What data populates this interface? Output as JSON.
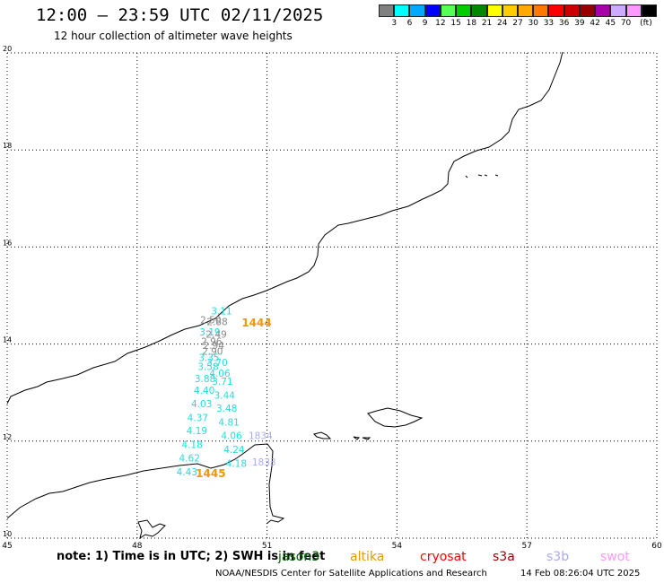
{
  "header": {
    "title": "12:00 – 23:59 UTC 02/11/2025",
    "subtitle": "12 hour collection of altimeter wave heights"
  },
  "legend": {
    "unit": "(ft)",
    "items": [
      {
        "label": "",
        "color": "#808080"
      },
      {
        "label": "3",
        "color": "#00ffff"
      },
      {
        "label": "6",
        "color": "#00aaff"
      },
      {
        "label": "9",
        "color": "#0000ff"
      },
      {
        "label": "12",
        "color": "#55ff55"
      },
      {
        "label": "15",
        "color": "#00cc00"
      },
      {
        "label": "18",
        "color": "#008800"
      },
      {
        "label": "21",
        "color": "#ffff00"
      },
      {
        "label": "24",
        "color": "#ffcc00"
      },
      {
        "label": "27",
        "color": "#ffaa00"
      },
      {
        "label": "30",
        "color": "#ff7700"
      },
      {
        "label": "33",
        "color": "#ff0000"
      },
      {
        "label": "36",
        "color": "#cc0000"
      },
      {
        "label": "39",
        "color": "#990000"
      },
      {
        "label": "42",
        "color": "#aa00aa"
      },
      {
        "label": "45",
        "color": "#ccaaff"
      },
      {
        "label": "70",
        "color": "#ff99ff"
      },
      {
        "label": "",
        "color": "#000000"
      }
    ]
  },
  "map": {
    "lon_labels": [
      "45",
      "48",
      "51",
      "54",
      "57",
      "60"
    ],
    "lat_labels": [
      "20",
      "18",
      "16",
      "14",
      "12",
      "10"
    ],
    "lon_range": [
      45,
      60
    ],
    "lat_range": [
      10,
      20
    ],
    "grid": true
  },
  "observations": [
    {
      "text": "3.11",
      "color": "#22dddd",
      "lon": 49.95,
      "lat": 14.61
    },
    {
      "text": "2.50",
      "color": "#888888",
      "lon": 49.7,
      "lat": 14.43
    },
    {
      "text": "2.88",
      "color": "#888888",
      "lon": 49.85,
      "lat": 14.39
    },
    {
      "text": "3.19",
      "color": "#22dddd",
      "lon": 49.68,
      "lat": 14.18
    },
    {
      "text": "2.49",
      "color": "#888888",
      "lon": 49.83,
      "lat": 14.13
    },
    {
      "text": "2.96",
      "color": "#888888",
      "lon": 49.72,
      "lat": 13.98
    },
    {
      "text": "2.94",
      "color": "#888888",
      "lon": 49.77,
      "lat": 13.9
    },
    {
      "text": "2.90",
      "color": "#888888",
      "lon": 49.74,
      "lat": 13.78
    },
    {
      "text": "3.35",
      "color": "#22dddd",
      "lon": 49.66,
      "lat": 13.65
    },
    {
      "text": "3.70",
      "color": "#22dddd",
      "lon": 49.85,
      "lat": 13.55
    },
    {
      "text": "3.58",
      "color": "#22dddd",
      "lon": 49.64,
      "lat": 13.47
    },
    {
      "text": "4.06",
      "color": "#22dddd",
      "lon": 49.91,
      "lat": 13.33
    },
    {
      "text": "3.88",
      "color": "#22dddd",
      "lon": 49.57,
      "lat": 13.22
    },
    {
      "text": "3.71",
      "color": "#22dddd",
      "lon": 49.97,
      "lat": 13.16
    },
    {
      "text": "4.40",
      "color": "#22dddd",
      "lon": 49.55,
      "lat": 12.98
    },
    {
      "text": "3.44",
      "color": "#22dddd",
      "lon": 50.02,
      "lat": 12.87
    },
    {
      "text": "4.03",
      "color": "#22dddd",
      "lon": 49.49,
      "lat": 12.7
    },
    {
      "text": "3.48",
      "color": "#22dddd",
      "lon": 50.07,
      "lat": 12.61
    },
    {
      "text": "4.37",
      "color": "#22dddd",
      "lon": 49.4,
      "lat": 12.41
    },
    {
      "text": "4.81",
      "color": "#22dddd",
      "lon": 50.12,
      "lat": 12.32
    },
    {
      "text": "4.19",
      "color": "#22dddd",
      "lon": 49.38,
      "lat": 12.14
    },
    {
      "text": "4.06",
      "color": "#22dddd",
      "lon": 50.18,
      "lat": 12.04
    },
    {
      "text": "4.18",
      "color": "#22dddd",
      "lon": 49.27,
      "lat": 11.86
    },
    {
      "text": "4.24",
      "color": "#22dddd",
      "lon": 50.24,
      "lat": 11.76
    },
    {
      "text": "4.62",
      "color": "#22dddd",
      "lon": 49.21,
      "lat": 11.58
    },
    {
      "text": "4.18",
      "color": "#22dddd",
      "lon": 50.29,
      "lat": 11.47
    },
    {
      "text": "4.43",
      "color": "#22dddd",
      "lon": 49.15,
      "lat": 11.29
    },
    {
      "text": "1444",
      "color": "#ee9900",
      "lon": 50.76,
      "lat": 14.36,
      "bold": true
    },
    {
      "text": "1445",
      "color": "#ee9900",
      "lon": 49.7,
      "lat": 11.26,
      "bold": true
    },
    {
      "text": "1834",
      "color": "#aaaaee",
      "lon": 50.85,
      "lat": 12.04
    },
    {
      "text": "1833",
      "color": "#aaaaee",
      "lon": 50.93,
      "lat": 11.5
    }
  ],
  "footer": {
    "note": "note: 1) Time is in UTC; 2) SWH is in feet",
    "satellites": [
      {
        "label": "jason3",
        "color": "#006600"
      },
      {
        "label": "altika",
        "color": "#ee9900"
      },
      {
        "label": "cryosat",
        "color": "#ff0000"
      },
      {
        "label": "s3a",
        "color": "#990000"
      },
      {
        "label": "s3b",
        "color": "#aaaaee"
      },
      {
        "label": "swot",
        "color": "#ff99ff"
      }
    ],
    "credit": "NOAA/NESDIS Center for Satellite Applications and Research",
    "generated": "14 Feb 08:26:04 UTC 2025"
  }
}
